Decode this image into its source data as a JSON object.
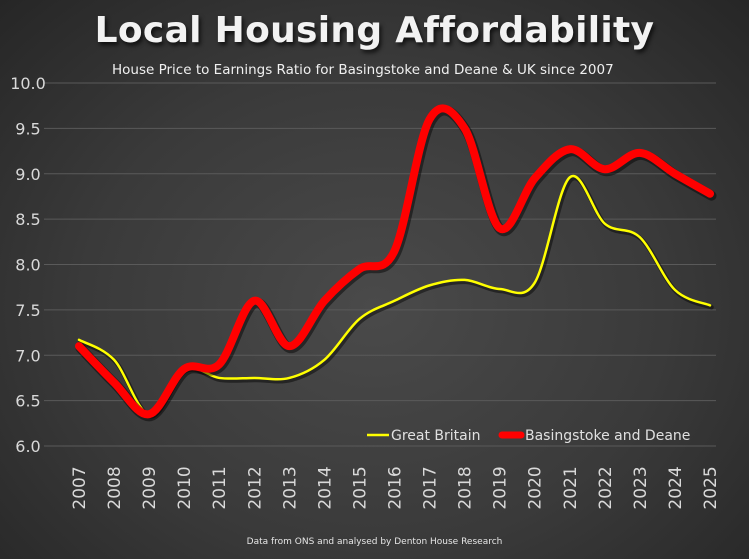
{
  "chart_data": {
    "type": "line",
    "title": "Local Housing Affordability",
    "subtitle": "House Price to Earnings Ratio for Basingstoke and Deane & UK since 2007",
    "footnote": "Data from ONS and analysed by Denton House Research",
    "xlabel": "",
    "ylabel": "",
    "x": [
      "2007",
      "2008",
      "2009",
      "2010",
      "2011",
      "2012",
      "2013",
      "2014",
      "2015",
      "2016",
      "2017",
      "2018",
      "2019",
      "2020",
      "2021",
      "2022",
      "2023",
      "2024",
      "2025"
    ],
    "ylim": [
      6.0,
      10.0
    ],
    "yticks": [
      "6.0",
      "6.5",
      "7.0",
      "7.5",
      "8.0",
      "8.5",
      "9.0",
      "9.5",
      "10.0"
    ],
    "ytick_values": [
      6.0,
      6.5,
      7.0,
      7.5,
      8.0,
      8.5,
      9.0,
      9.5,
      10.0
    ],
    "grid": true,
    "legend_position": "bottom-right",
    "series": [
      {
        "name": "Great Britain",
        "color": "#ffff00",
        "values": [
          7.17,
          6.95,
          6.35,
          6.85,
          6.75,
          6.75,
          6.75,
          6.95,
          7.4,
          7.6,
          7.77,
          7.83,
          7.73,
          7.8,
          8.96,
          8.45,
          8.3,
          7.72,
          7.55
        ]
      },
      {
        "name": "Basingstoke and Deane",
        "color": "#ff0000",
        "values": [
          7.1,
          6.7,
          6.35,
          6.85,
          6.9,
          7.6,
          7.1,
          7.6,
          7.95,
          8.15,
          9.6,
          9.5,
          8.4,
          8.95,
          9.27,
          9.05,
          9.23,
          9.0,
          8.78
        ]
      }
    ]
  }
}
